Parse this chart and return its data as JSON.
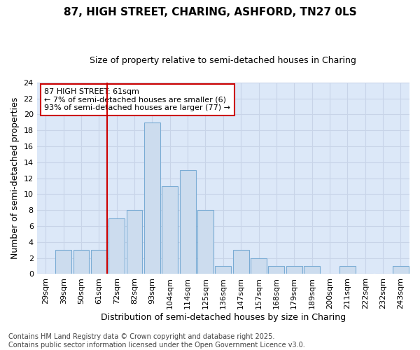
{
  "title_line1": "87, HIGH STREET, CHARING, ASHFORD, TN27 0LS",
  "title_line2": "Size of property relative to semi-detached houses in Charing",
  "xlabel": "Distribution of semi-detached houses by size in Charing",
  "ylabel": "Number of semi-detached properties",
  "categories": [
    "29sqm",
    "39sqm",
    "50sqm",
    "61sqm",
    "72sqm",
    "82sqm",
    "93sqm",
    "104sqm",
    "114sqm",
    "125sqm",
    "136sqm",
    "147sqm",
    "157sqm",
    "168sqm",
    "179sqm",
    "189sqm",
    "200sqm",
    "211sqm",
    "222sqm",
    "232sqm",
    "243sqm"
  ],
  "values": [
    0,
    3,
    3,
    3,
    7,
    8,
    19,
    11,
    13,
    8,
    1,
    3,
    2,
    1,
    1,
    1,
    0,
    1,
    0,
    0,
    1
  ],
  "bar_color": "#ccdcee",
  "bar_edge_color": "#7aacd4",
  "highlight_index": 3,
  "highlight_line_color": "#cc0000",
  "ylim": [
    0,
    24
  ],
  "yticks": [
    0,
    2,
    4,
    6,
    8,
    10,
    12,
    14,
    16,
    18,
    20,
    22,
    24
  ],
  "grid_color": "#c8d4e8",
  "background_color": "#dce8f8",
  "fig_background_color": "#ffffff",
  "annotation_text": "87 HIGH STREET: 61sqm\n← 7% of semi-detached houses are smaller (6)\n93% of semi-detached houses are larger (77) →",
  "annotation_box_facecolor": "#ffffff",
  "annotation_box_edgecolor": "#cc0000",
  "footer_text": "Contains HM Land Registry data © Crown copyright and database right 2025.\nContains public sector information licensed under the Open Government Licence v3.0.",
  "title_fontsize": 11,
  "subtitle_fontsize": 9,
  "axis_label_fontsize": 9,
  "tick_fontsize": 8,
  "annotation_fontsize": 8,
  "footer_fontsize": 7
}
